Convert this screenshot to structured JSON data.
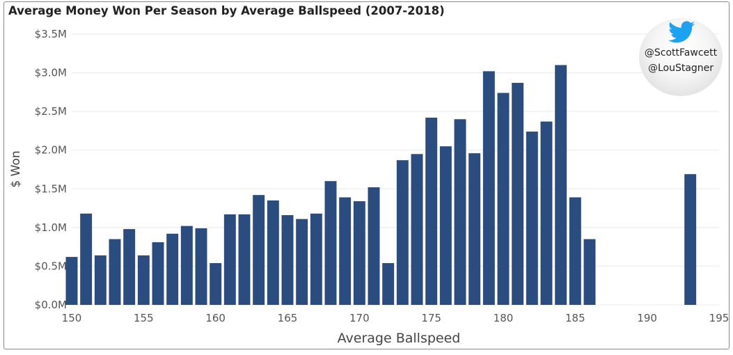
{
  "title": "Average Money Won Per Season by Average Ballspeed (2007-2018)",
  "badge": {
    "icon": "twitter-bird-icon",
    "line1": "@ScottFawcett",
    "line2": "@LouStagner"
  },
  "colors": {
    "bar": "#2B4C7E",
    "grid": "#e8e8e8"
  },
  "chart_data": {
    "type": "bar",
    "title": "Average Money Won Per Season by Average Ballspeed (2007-2018)",
    "xlabel": "Average Ballspeed",
    "ylabel": "$ Won",
    "xlim": [
      150,
      195
    ],
    "ylim": [
      0,
      3500000
    ],
    "xticks": [
      "150",
      "155",
      "160",
      "165",
      "170",
      "175",
      "180",
      "185",
      "190",
      "195"
    ],
    "yticks": [
      "$0.0M",
      "$0.5M",
      "$1.0M",
      "$1.5M",
      "$2.0M",
      "$2.5M",
      "$3.0M",
      "$3.5M"
    ],
    "grid": true,
    "x": [
      150,
      151,
      152,
      153,
      154,
      155,
      156,
      157,
      158,
      159,
      160,
      161,
      162,
      163,
      164,
      165,
      166,
      167,
      168,
      169,
      170,
      171,
      172,
      173,
      174,
      175,
      176,
      177,
      178,
      179,
      180,
      181,
      182,
      183,
      184,
      185,
      186,
      193
    ],
    "values": [
      620000,
      1180000,
      640000,
      850000,
      980000,
      640000,
      810000,
      920000,
      1020000,
      990000,
      540000,
      1170000,
      1170000,
      1420000,
      1350000,
      1160000,
      1110000,
      1180000,
      1600000,
      1390000,
      1340000,
      1520000,
      540000,
      1870000,
      1950000,
      2420000,
      2050000,
      2400000,
      1960000,
      3020000,
      2740000,
      2870000,
      2240000,
      2370000,
      3100000,
      1390000,
      850000,
      1690000
    ]
  }
}
